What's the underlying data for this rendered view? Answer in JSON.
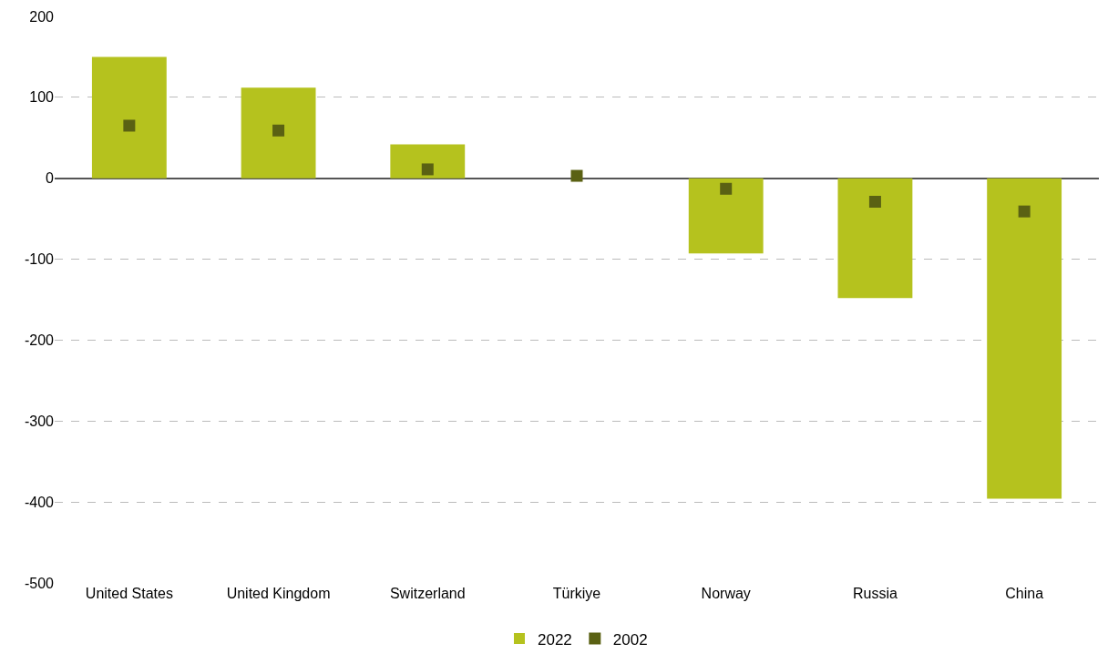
{
  "chart_data": {
    "type": "bar",
    "categories": [
      "United States",
      "United Kingdom",
      "Switzerland",
      "Türkiye",
      "Norway",
      "Russia",
      "China"
    ],
    "series": [
      {
        "name": "2022",
        "color": "#b5c21e",
        "values": [
          150,
          112,
          42,
          null,
          -93,
          -148,
          -396
        ]
      },
      {
        "name": "2002",
        "type": "scatter",
        "marker": "square",
        "color": "#5a6113",
        "values": [
          65,
          59,
          11,
          3,
          -13,
          -29,
          -41
        ]
      }
    ],
    "ylim": [
      -500,
      200
    ],
    "yticks": [
      -500,
      -400,
      -300,
      -200,
      -100,
      0,
      100,
      200
    ],
    "grid": "y",
    "legend": "bottom"
  }
}
